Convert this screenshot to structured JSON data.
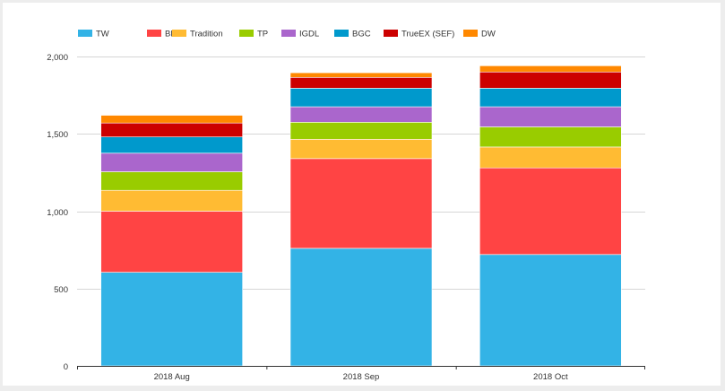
{
  "chart_data": {
    "type": "bar",
    "stacked": true,
    "title": "",
    "xlabel": "",
    "ylabel": "",
    "categories": [
      "2018 Aug",
      "2018 Sep",
      "2018 Oct"
    ],
    "ylim": [
      0,
      2000
    ],
    "yticks": [
      0,
      500,
      1000,
      1500,
      2000
    ],
    "ytick_labels": [
      "0",
      "500",
      "1,000",
      "1,500",
      "2,000"
    ],
    "grid": true,
    "legend_position": "top-left",
    "series": [
      {
        "name": "TW",
        "color": "#33b3e6",
        "values": [
          605,
          760,
          720
        ]
      },
      {
        "name": "BBG",
        "color": "#ff4444",
        "values": [
          395,
          580,
          560
        ]
      },
      {
        "name": "Tradition",
        "color": "#ffbb33",
        "values": [
          135,
          125,
          135
        ]
      },
      {
        "name": "TP",
        "color": "#99cc00",
        "values": [
          120,
          110,
          130
        ]
      },
      {
        "name": "IGDL",
        "color": "#aa66cc",
        "values": [
          120,
          100,
          130
        ]
      },
      {
        "name": "BGC",
        "color": "#0099cc",
        "values": [
          105,
          120,
          120
        ]
      },
      {
        "name": "TrueEX (SEF)",
        "color": "#cc0000",
        "values": [
          90,
          70,
          105
        ]
      },
      {
        "name": "DW",
        "color": "#ff8800",
        "values": [
          50,
          30,
          40
        ]
      }
    ]
  }
}
